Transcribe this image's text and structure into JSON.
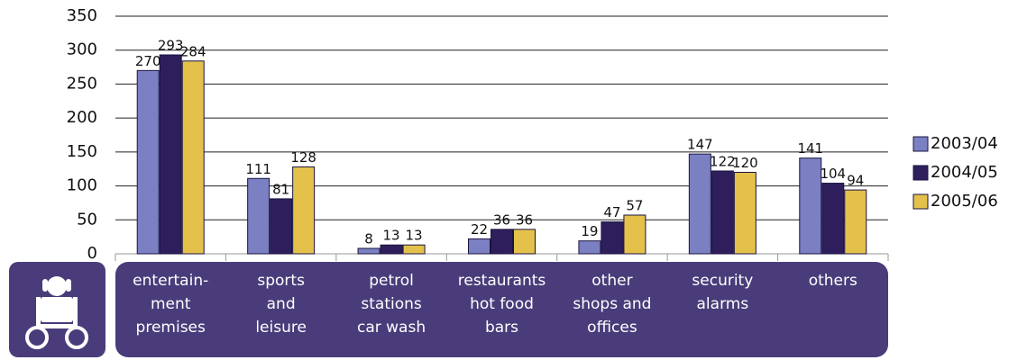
{
  "chart_data": {
    "type": "bar",
    "categories": [
      [
        "entertain-",
        "ment",
        "premises"
      ],
      [
        "sports",
        "and",
        "leisure"
      ],
      [
        "petrol",
        "stations",
        "car wash"
      ],
      [
        "restaurants",
        "hot food",
        "bars"
      ],
      [
        "other",
        "shops and",
        "offices"
      ],
      [
        "security",
        "alarms"
      ],
      [
        "others"
      ]
    ],
    "series": [
      {
        "name": "2003/04",
        "color": "#7b80c2",
        "values": [
          270,
          111,
          8,
          22,
          19,
          147,
          141
        ]
      },
      {
        "name": "2004/05",
        "color": "#2e1f5c",
        "values": [
          293,
          81,
          13,
          36,
          47,
          122,
          104
        ]
      },
      {
        "name": "2005/06",
        "color": "#e4c14b",
        "values": [
          284,
          128,
          13,
          36,
          57,
          120,
          94
        ]
      }
    ],
    "ylim": [
      0,
      350
    ],
    "yticks": [
      0,
      50,
      100,
      150,
      200,
      250,
      300,
      350
    ],
    "grid": true,
    "legend": "right"
  }
}
